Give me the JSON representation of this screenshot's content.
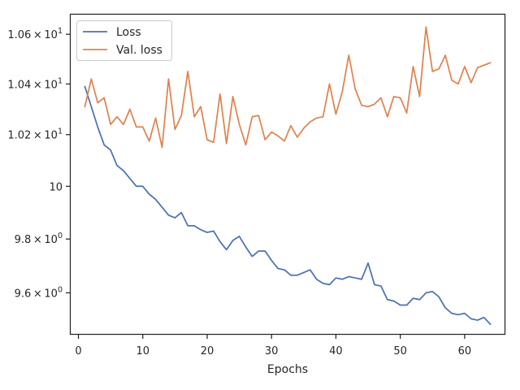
{
  "chart_data": {
    "type": "line",
    "xlabel": "Epochs",
    "ylabel": "",
    "xlim": [
      -1.2,
      66.2
    ],
    "ylim": [
      9.45,
      10.68
    ],
    "yscale": "log",
    "x_ticks": [
      0,
      10,
      20,
      30,
      40,
      50,
      60
    ],
    "y_ticks": [
      {
        "value": 9.6,
        "base": "9.6",
        "sup": "0"
      },
      {
        "value": 9.8,
        "base": "9.8",
        "sup": "0"
      },
      {
        "value": 10.0,
        "base": "10",
        "sup": ""
      },
      {
        "value": 10.2,
        "base": "1.02",
        "sup": "1"
      },
      {
        "value": 10.4,
        "base": "1.04",
        "sup": "1"
      },
      {
        "value": 10.6,
        "base": "1.06",
        "sup": "1"
      }
    ],
    "times_symbol": "×",
    "grid": false,
    "legend_position": "top-left",
    "series": [
      {
        "name": "Loss",
        "color": "#4c72b0",
        "x": [
          1,
          2,
          3,
          4,
          5,
          6,
          7,
          8,
          9,
          10,
          11,
          12,
          13,
          14,
          15,
          16,
          17,
          18,
          19,
          20,
          21,
          22,
          23,
          24,
          25,
          26,
          27,
          28,
          29,
          30,
          31,
          32,
          33,
          34,
          35,
          36,
          37,
          38,
          39,
          40,
          41,
          42,
          43,
          44,
          45,
          46,
          47,
          48,
          49,
          50,
          51,
          52,
          53,
          54,
          55,
          56,
          57,
          58,
          59,
          60,
          61,
          62,
          63,
          64
        ],
        "y": [
          10.39,
          10.31,
          10.23,
          10.16,
          10.14,
          10.08,
          10.06,
          10.03,
          10.0,
          10.0,
          9.97,
          9.95,
          9.92,
          9.89,
          9.88,
          9.9,
          9.85,
          9.85,
          9.835,
          9.825,
          9.83,
          9.79,
          9.76,
          9.795,
          9.81,
          9.77,
          9.735,
          9.755,
          9.755,
          9.72,
          9.69,
          9.685,
          9.665,
          9.665,
          9.675,
          9.685,
          9.65,
          9.635,
          9.63,
          9.655,
          9.65,
          9.66,
          9.655,
          9.65,
          9.71,
          9.63,
          9.625,
          9.575,
          9.57,
          9.555,
          9.555,
          9.58,
          9.575,
          9.6,
          9.605,
          9.585,
          9.545,
          9.525,
          9.52,
          9.525,
          9.505,
          9.5,
          9.51,
          9.485
        ]
      },
      {
        "name": "Val. loss",
        "color": "#dd8452",
        "x": [
          1,
          2,
          3,
          4,
          5,
          6,
          7,
          8,
          9,
          10,
          11,
          12,
          13,
          14,
          15,
          16,
          17,
          18,
          19,
          20,
          21,
          22,
          23,
          24,
          25,
          26,
          27,
          28,
          29,
          30,
          31,
          32,
          33,
          34,
          35,
          36,
          37,
          38,
          39,
          40,
          41,
          42,
          43,
          44,
          45,
          46,
          47,
          48,
          49,
          50,
          51,
          52,
          53,
          54,
          55,
          56,
          57,
          58,
          59,
          60,
          61,
          62,
          63,
          64
        ],
        "y": [
          10.31,
          10.42,
          10.325,
          10.345,
          10.24,
          10.27,
          10.24,
          10.3,
          10.23,
          10.23,
          10.175,
          10.265,
          10.15,
          10.42,
          10.22,
          10.275,
          10.45,
          10.27,
          10.31,
          10.18,
          10.17,
          10.36,
          10.165,
          10.35,
          10.24,
          10.16,
          10.27,
          10.275,
          10.18,
          10.21,
          10.195,
          10.175,
          10.235,
          10.19,
          10.225,
          10.25,
          10.265,
          10.27,
          10.4,
          10.28,
          10.37,
          10.515,
          10.38,
          10.315,
          10.31,
          10.32,
          10.345,
          10.27,
          10.35,
          10.345,
          10.285,
          10.47,
          10.35,
          10.63,
          10.45,
          10.46,
          10.515,
          10.415,
          10.4,
          10.47,
          10.405,
          10.465,
          10.475,
          10.485
        ]
      }
    ]
  }
}
